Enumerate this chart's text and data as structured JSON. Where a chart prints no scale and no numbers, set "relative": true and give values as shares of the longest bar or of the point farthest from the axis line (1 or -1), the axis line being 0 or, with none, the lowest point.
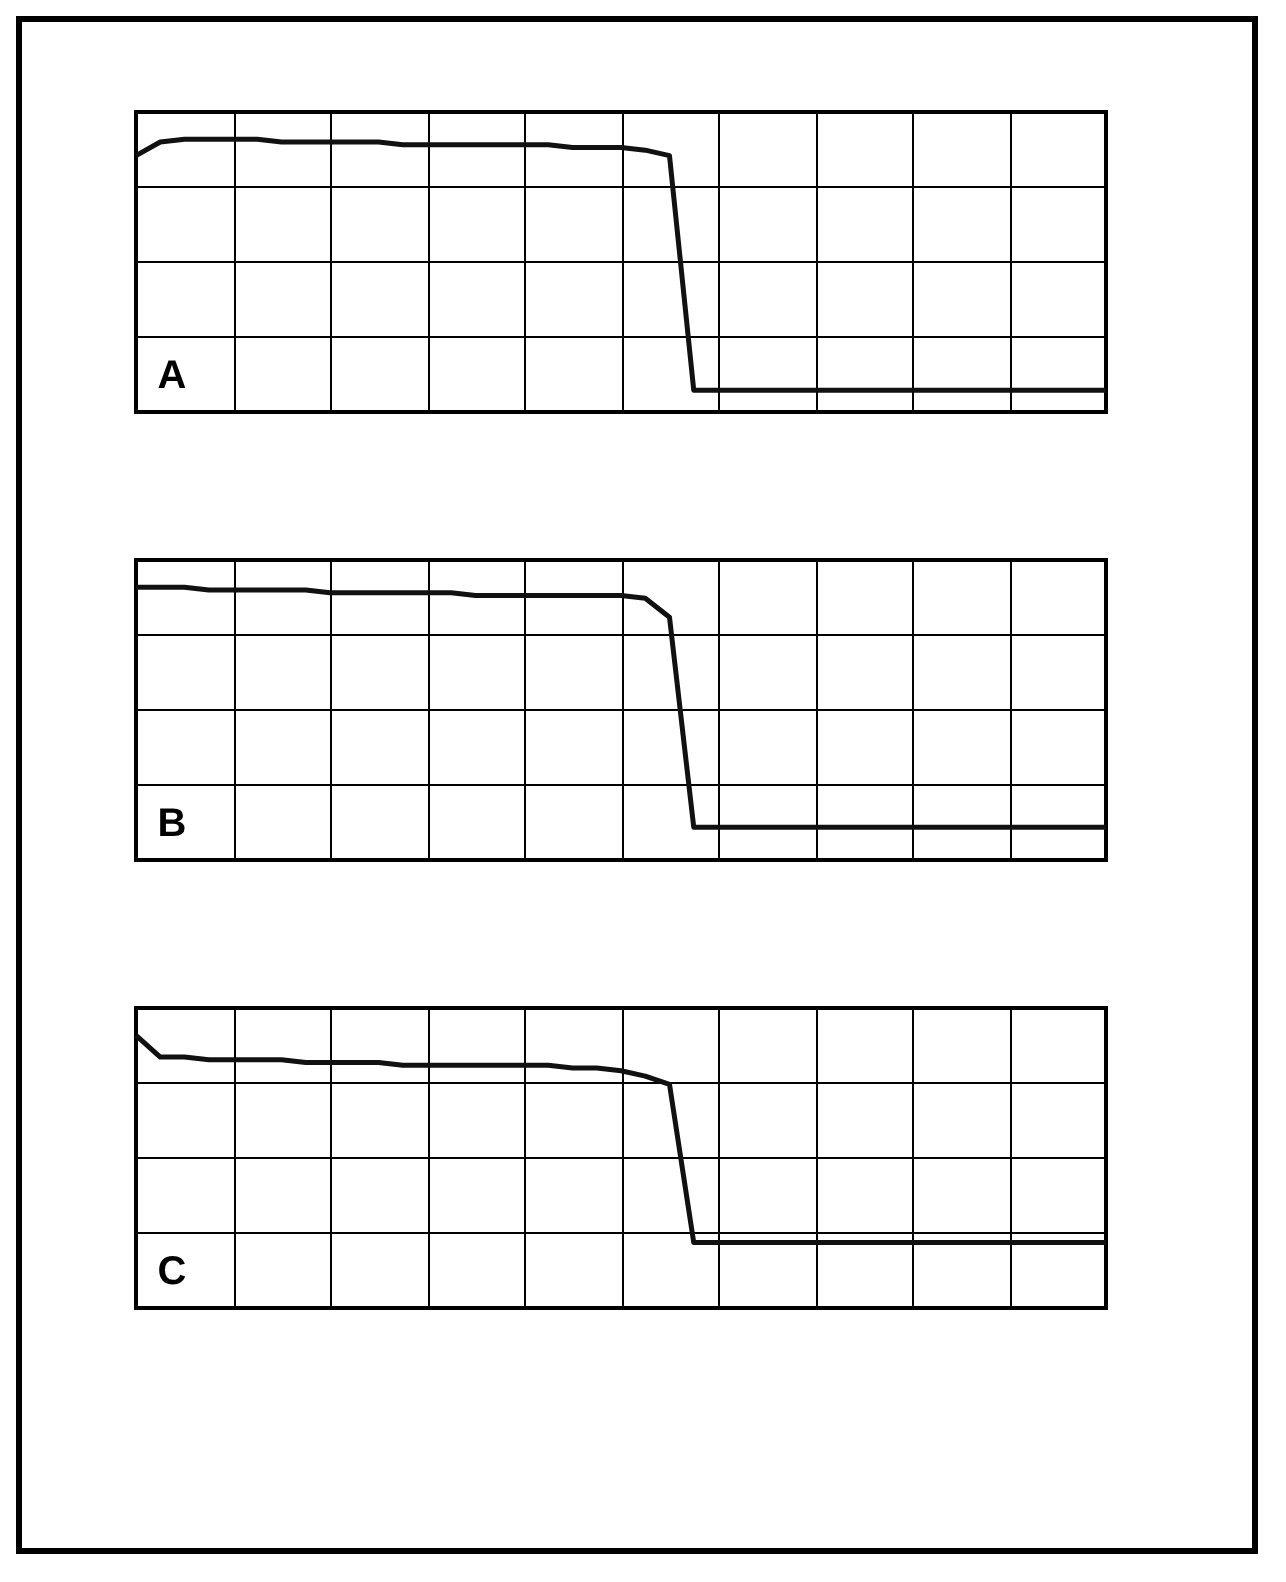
{
  "chart_data": [
    {
      "type": "line",
      "relative": true,
      "grid": true,
      "tick_labels": false,
      "annotations": [
        "A"
      ],
      "categories": [
        null,
        null,
        null,
        null,
        null,
        null,
        null,
        null,
        null,
        null,
        null,
        null,
        null,
        null,
        null,
        null,
        null,
        null,
        null,
        null,
        null,
        null,
        null,
        null,
        null,
        null,
        null,
        null,
        null,
        null,
        null,
        null,
        null,
        null,
        null,
        null,
        null,
        null,
        null,
        null,
        null
      ],
      "series": [
        {
          "color": "#111111",
          "values": [
            0.94,
            0.99,
            1.0,
            1.0,
            1.0,
            1.0,
            0.99,
            0.99,
            0.99,
            0.99,
            0.99,
            0.98,
            0.98,
            0.98,
            0.98,
            0.98,
            0.98,
            0.98,
            0.97,
            0.97,
            0.97,
            0.96,
            0.94,
            0.08,
            0.08,
            0.08,
            0.08,
            0.08,
            0.08,
            0.08,
            0.08,
            0.08,
            0.08,
            0.08,
            0.08,
            0.08,
            0.08,
            0.08,
            0.08,
            0.08,
            0.08
          ]
        }
      ]
    },
    {
      "type": "line",
      "relative": true,
      "grid": true,
      "tick_labels": false,
      "annotations": [
        "B"
      ],
      "categories": [
        null,
        null,
        null,
        null,
        null,
        null,
        null,
        null,
        null,
        null,
        null,
        null,
        null,
        null,
        null,
        null,
        null,
        null,
        null,
        null,
        null,
        null,
        null,
        null,
        null,
        null,
        null,
        null,
        null,
        null,
        null,
        null,
        null,
        null,
        null,
        null,
        null,
        null,
        null,
        null,
        null
      ],
      "series": [
        {
          "color": "#111111",
          "values": [
            1.0,
            1.0,
            1.0,
            0.99,
            0.99,
            0.99,
            0.99,
            0.99,
            0.98,
            0.98,
            0.98,
            0.98,
            0.98,
            0.98,
            0.97,
            0.97,
            0.97,
            0.97,
            0.97,
            0.97,
            0.97,
            0.96,
            0.89,
            0.12,
            0.12,
            0.12,
            0.12,
            0.12,
            0.12,
            0.12,
            0.12,
            0.12,
            0.12,
            0.12,
            0.12,
            0.12,
            0.12,
            0.12,
            0.12,
            0.12,
            0.12
          ]
        }
      ]
    },
    {
      "type": "line",
      "relative": true,
      "grid": true,
      "tick_labels": false,
      "annotations": [
        "C"
      ],
      "categories": [
        null,
        null,
        null,
        null,
        null,
        null,
        null,
        null,
        null,
        null,
        null,
        null,
        null,
        null,
        null,
        null,
        null,
        null,
        null,
        null,
        null,
        null,
        null,
        null,
        null,
        null,
        null,
        null,
        null,
        null,
        null,
        null,
        null,
        null,
        null,
        null,
        null,
        null,
        null,
        null,
        null
      ],
      "series": [
        {
          "color": "#111111",
          "values": [
            1.0,
            0.92,
            0.92,
            0.91,
            0.91,
            0.91,
            0.91,
            0.9,
            0.9,
            0.9,
            0.9,
            0.89,
            0.89,
            0.89,
            0.89,
            0.89,
            0.89,
            0.89,
            0.88,
            0.88,
            0.87,
            0.85,
            0.82,
            0.24,
            0.24,
            0.24,
            0.24,
            0.24,
            0.24,
            0.24,
            0.24,
            0.24,
            0.24,
            0.24,
            0.24,
            0.24,
            0.24,
            0.24,
            0.24,
            0.24,
            0.24
          ]
        }
      ]
    }
  ]
}
